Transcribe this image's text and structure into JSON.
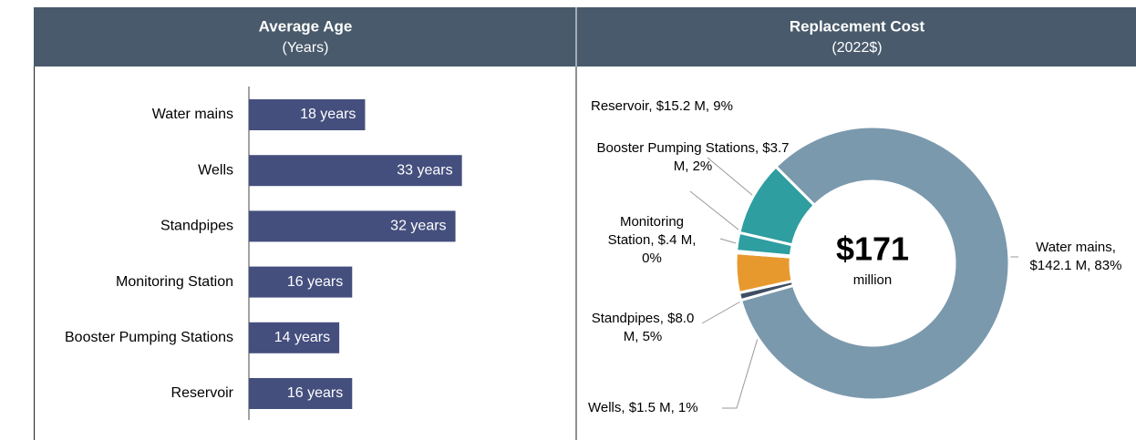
{
  "chart_data": [
    {
      "type": "hbar",
      "title": "Average Age",
      "subtitle": "(Years)",
      "categories": [
        "Water mains",
        "Wells",
        "Standpipes",
        "Monitoring Station",
        "Booster Pumping Stations",
        "Reservoir"
      ],
      "values": [
        18,
        33,
        32,
        16,
        14,
        16
      ],
      "value_labels": [
        "18 years",
        "33 years",
        "32 years",
        "16 years",
        "14 years",
        "16 years"
      ],
      "color": "#444f7e"
    },
    {
      "type": "donut",
      "title": "Replacement Cost",
      "subtitle": "(2022$)",
      "center_label": "$171",
      "center_sublabel": "million",
      "labels": [
        "Water mains, $142.1 M, 83%",
        "Wells, $1.5 M, 1%",
        "Standpipes, $8.0 M, 5%",
        "Monitoring Station, $.4 M, 0%",
        "Booster Pumping Stations, $3.7 M, 2%",
        "Reservoir, $15.2 M, 9%"
      ],
      "values": [
        142.1,
        1.5,
        8.0,
        0.4,
        3.7,
        15.2
      ],
      "colors": [
        "#7b99ad",
        "#3e4e63",
        "#e8992e",
        "#8aa35a",
        "#2e9ea0",
        "#2e9ea0"
      ]
    }
  ]
}
